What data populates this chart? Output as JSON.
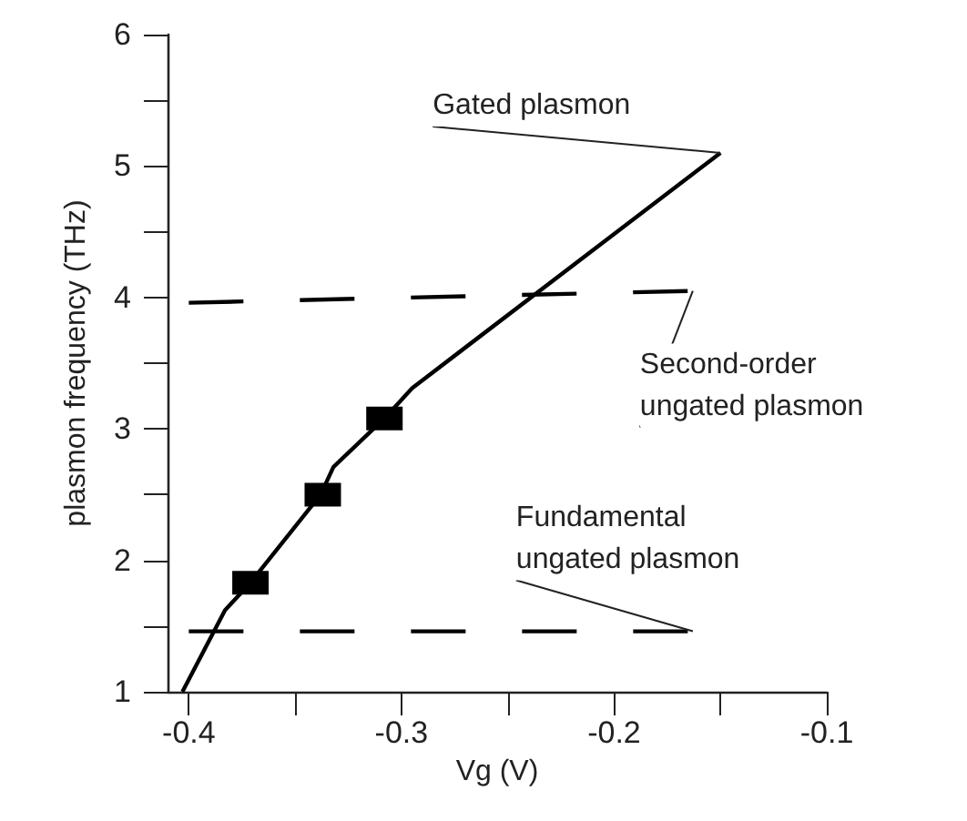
{
  "chart_data": {
    "type": "line",
    "xlabel": "Vg (V)",
    "ylabel": "plasmon frequency (THz)",
    "xlim": [
      -0.41,
      -0.1
    ],
    "ylim": [
      1,
      6
    ],
    "xticks": [
      -0.4,
      {
        "value": -0.35,
        "label": null
      },
      -0.3,
      {
        "value": -0.25,
        "label": null
      },
      -0.2,
      {
        "value": -0.15,
        "label": null
      },
      -0.1
    ],
    "yticks": [
      1,
      {
        "value": 1.5,
        "label": null
      },
      2,
      {
        "value": 2.5,
        "label": null
      },
      3,
      {
        "value": 3.5,
        "label": null
      },
      4,
      {
        "value": 4.5,
        "label": null
      },
      5,
      {
        "value": 5.5,
        "label": null
      },
      6
    ],
    "grid": false,
    "legend": false,
    "series": [
      {
        "name": "Gated plasmon",
        "color": "#000000",
        "line_style": "solid",
        "marker": "none",
        "x": [
          -0.403,
          -0.383,
          -0.371,
          -0.338,
          -0.332,
          -0.308,
          -0.295,
          -0.15
        ],
        "values": [
          1,
          1.62,
          1.83,
          2.5,
          2.71,
          3.08,
          3.31,
          5.1
        ]
      },
      {
        "type": "scatter",
        "color": "#000000",
        "marker": "square",
        "x": [
          -0.371,
          -0.337,
          -0.308
        ],
        "values": [
          1.83,
          2.5,
          3.08
        ]
      },
      {
        "name": "Second-order\nungated plasmon",
        "color": "#000000",
        "line_style": "dashed",
        "marker": "none",
        "x": [
          -0.4,
          -0.163
        ],
        "values": [
          3.96,
          4.05
        ]
      },
      {
        "name": "Fundamental\nungated plasmon",
        "color": "#000000",
        "line_style": "dashed",
        "marker": "none",
        "x": [
          -0.4,
          -0.163
        ],
        "values": [
          1.46,
          1.46
        ]
      }
    ]
  }
}
